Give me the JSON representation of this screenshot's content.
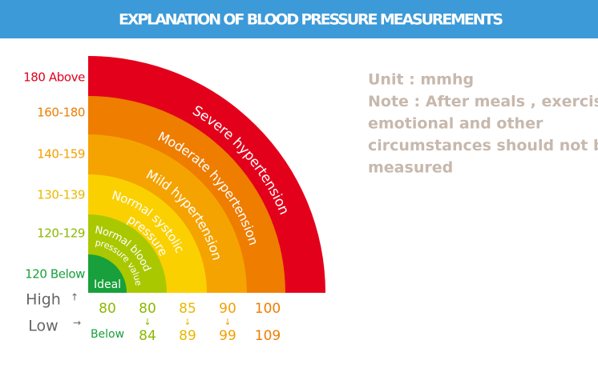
{
  "header": {
    "title": "EXPLANATION OF BLOOD PRESSURE MEASUREMENTS"
  },
  "bands": [
    {
      "range": "180 Above",
      "label_lines": [
        "Severe hypertension"
      ]
    },
    {
      "range": "160-180",
      "label_lines": [
        "Moderate hypertension"
      ]
    },
    {
      "range": "140-159",
      "label_lines": [
        "Mild hypertension"
      ]
    },
    {
      "range": "130-139",
      "label_lines": [
        "Normal systolic",
        "pressure"
      ]
    },
    {
      "range": "120-129",
      "label_lines": [
        "Normal blood",
        "pressure value"
      ]
    },
    {
      "range": "120 Below",
      "label_lines": [
        "Ideal"
      ]
    }
  ],
  "table": {
    "rows": [
      {
        "name": "High",
        "values": [
          "80",
          "80",
          "85",
          "90",
          "100"
        ]
      },
      {
        "name": "Low",
        "values": [
          "Below",
          "84",
          "89",
          "99",
          "109"
        ]
      }
    ]
  },
  "note": {
    "lines": [
      "Unit : mmhg",
      "Note : After meals , exercise",
      "emotional and other",
      "circumstances should not be",
      "measured"
    ]
  }
}
